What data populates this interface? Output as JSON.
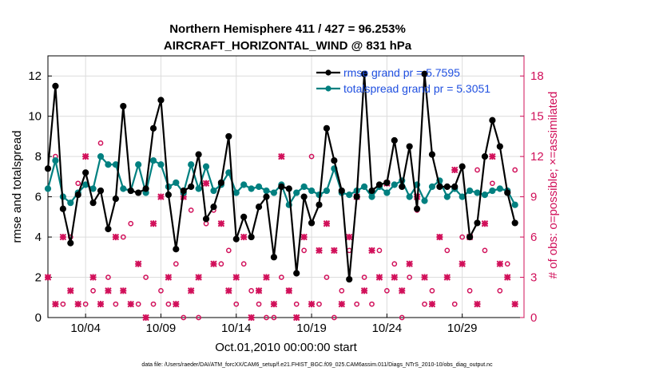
{
  "chart_data": {
    "type": "line",
    "title_line1": "Northern Hemisphere 411 / 427 = 96.253%",
    "title_line2": "AIRCRAFT_HORIZONTAL_WIND @ 831 hPa",
    "xlabel": "Oct.01,2010 00:00:00 start",
    "ylabel_left": "rmse and totalspread",
    "ylabel_right": "# of obs: o=possible; ×=assimilated",
    "xlim": [
      1,
      32.6
    ],
    "ylim_left": [
      0,
      13
    ],
    "ylim_right": [
      0,
      19.5
    ],
    "x_ticks": [
      3.5,
      8.5,
      13.5,
      18.5,
      23.5,
      28.5
    ],
    "x_tick_labels": [
      "10/04",
      "10/09",
      "10/14",
      "10/19",
      "10/24",
      "10/29"
    ],
    "y_ticks_left": [
      0,
      2,
      4,
      6,
      8,
      10,
      12
    ],
    "y_ticks_right": [
      0,
      3,
      6,
      9,
      12,
      15,
      18
    ],
    "legend": [
      "rmse grand pr = 5.7595",
      "totalspread grand pr = 5.3051"
    ],
    "colors": {
      "rmse": "#000000",
      "spread": "#008080",
      "obs": "#d1105a",
      "legend_text": "#1f4fe0",
      "grid": "#dcdcdc"
    },
    "series": [
      {
        "name": "rmse",
        "x": [
          1,
          1.5,
          2,
          2.5,
          3,
          3.5,
          4,
          4.5,
          5,
          5.5,
          6,
          6.5,
          7,
          7.5,
          8,
          8.5,
          9,
          9.5,
          10,
          10.5,
          11,
          11.5,
          12,
          12.5,
          13,
          13.5,
          14,
          14.5,
          15,
          15.5,
          16,
          16.5,
          17,
          17.5,
          18,
          18.5,
          19,
          19.5,
          20,
          20.5,
          21,
          21.5,
          22,
          22.5,
          23,
          23.5,
          24,
          24.5,
          25,
          25.5,
          26,
          26.5,
          27,
          27.5,
          28,
          28.5,
          29,
          29.5,
          30,
          30.5,
          31,
          31.5,
          32
        ],
        "values": [
          7.4,
          11.5,
          5.4,
          3.7,
          6.1,
          7.2,
          5.7,
          6.3,
          4.4,
          5.9,
          10.5,
          6.3,
          6.2,
          6.4,
          9.4,
          10.8,
          6.1,
          3.4,
          6.3,
          6.5,
          8.1,
          4.9,
          5.5,
          6.7,
          9.0,
          3.9,
          5.0,
          4.0,
          5.5,
          6.0,
          3.0,
          6.5,
          6.4,
          2.2,
          6.0,
          4.7,
          5.6,
          9.4,
          7.8,
          6.3,
          1.9,
          6.0,
          12.1,
          6.3,
          6.6,
          6.7,
          8.8,
          6.5,
          8.5,
          5.4,
          12.1,
          8.1,
          6.5,
          6.5,
          6.5,
          7.5,
          4.0,
          4.7,
          8.0,
          9.8,
          8.5,
          6.2,
          4.7
        ],
        "note": "read from plot; the line breaks where no value is shown"
      },
      {
        "name": "totalspread",
        "x": [
          1,
          1.5,
          2,
          2.5,
          3,
          3.5,
          4,
          4.5,
          5,
          5.5,
          6,
          6.5,
          7,
          7.5,
          8,
          8.5,
          9,
          9.5,
          10,
          10.5,
          11,
          11.5,
          12,
          12.5,
          13,
          13.5,
          14,
          14.5,
          15,
          15.5,
          16,
          16.5,
          17,
          17.5,
          18,
          18.5,
          19,
          19.5,
          20,
          20.5,
          21,
          21.5,
          22,
          22.5,
          23,
          23.5,
          24,
          24.5,
          25,
          25.5,
          26,
          26.5,
          27,
          27.5,
          28,
          28.5,
          29,
          29.5,
          30,
          30.5,
          31,
          31.5,
          32
        ],
        "values": [
          6.4,
          7.8,
          6.0,
          5.7,
          6.2,
          6.6,
          6.4,
          8.0,
          7.6,
          7.6,
          6.4,
          6.3,
          7.6,
          6.2,
          7.8,
          7.6,
          6.5,
          6.7,
          6.2,
          7.6,
          6.4,
          7.5,
          6.3,
          6.6,
          7.2,
          6.2,
          6.6,
          6.4,
          6.5,
          6.3,
          6.2,
          6.6,
          5.6,
          6.2,
          6.5,
          6.3,
          6.1,
          6.3,
          7.4,
          6.2,
          6.1,
          6.3,
          6.5,
          6.0,
          6.5,
          6.2,
          6.6,
          6.8,
          6.0,
          6.6,
          5.8,
          6.5,
          6.8,
          6.0,
          6.4,
          6.0,
          6.3,
          6.2,
          6.1,
          6.3,
          6.4,
          6.3,
          5.6
        ]
      },
      {
        "name": "obs_possible",
        "x": [
          1,
          1.5,
          2,
          2.5,
          3,
          3.5,
          4,
          4.5,
          5,
          5.5,
          6,
          6.5,
          7,
          7.5,
          8,
          8.5,
          9,
          9.5,
          10,
          10.5,
          11,
          11.5,
          12,
          12.5,
          13,
          13.5,
          14,
          14.5,
          15,
          15.5,
          16,
          16.5,
          17,
          17.5,
          18,
          18.5,
          19,
          19.5,
          20,
          20.5,
          21,
          21.5,
          22,
          22.5,
          23,
          23.5,
          24,
          24.5,
          25,
          25.5,
          26,
          26.5,
          27,
          27.5,
          28,
          28.5,
          29,
          29.5,
          30,
          30.5,
          31,
          31.5,
          32
        ],
        "values": [
          3,
          12,
          1,
          6,
          10,
          1,
          2,
          13,
          3,
          1,
          6,
          7,
          1,
          3,
          1,
          2,
          1,
          4,
          0,
          8,
          0,
          7,
          8,
          4,
          5,
          1,
          4,
          2,
          1,
          0,
          0,
          3,
          2,
          1,
          5,
          12,
          1,
          3,
          0,
          2,
          5,
          1,
          3,
          1,
          5,
          2,
          4,
          0,
          3,
          8,
          1,
          2,
          6,
          5,
          1,
          6,
          2,
          11,
          5,
          10,
          2,
          4,
          11
        ],
        "note": "approximate counts read from plot (right axis)"
      },
      {
        "name": "obs_assimilated",
        "x": [
          1,
          1.5,
          2,
          2.5,
          3,
          3.5,
          4,
          4.5,
          5,
          5.5,
          6,
          6.5,
          7,
          7.5,
          8,
          8.5,
          9,
          9.5,
          10,
          10.5,
          11,
          11.5,
          12,
          12.5,
          13,
          13.5,
          14,
          14.5,
          15,
          15.5,
          16,
          16.5,
          17,
          17.5,
          18,
          18.5,
          19,
          19.5,
          20,
          20.5,
          21,
          21.5,
          22,
          22.5,
          23,
          23.5,
          24,
          24.5,
          25,
          25.5,
          26,
          26.5,
          27,
          27.5,
          28,
          28.5,
          29,
          29.5,
          30,
          30.5,
          31,
          31.5,
          32
        ],
        "values": [
          3,
          1,
          6,
          2,
          1,
          12,
          3,
          1,
          2,
          6,
          2,
          1,
          4,
          0,
          7,
          9,
          3,
          1,
          9,
          2,
          3,
          10,
          4,
          7,
          2,
          3,
          6,
          0,
          2,
          3,
          1,
          12,
          2,
          0,
          6,
          1,
          5,
          7,
          5,
          1,
          6,
          9,
          2,
          5,
          3,
          10,
          3,
          2,
          4,
          9,
          3,
          1,
          6,
          3,
          11,
          4,
          6,
          1,
          7,
          12,
          4,
          3,
          1
        ],
        "note": "approximate counts read from plot (right axis)"
      }
    ],
    "footer": "data file: /Users/raeder/DAI/ATM_forcXX/CAM6_setup/f.e21.FHIST_BGC.f09_025.CAM6assim.011/Diags_NTrS_2010-10/obs_diag_output.nc"
  }
}
